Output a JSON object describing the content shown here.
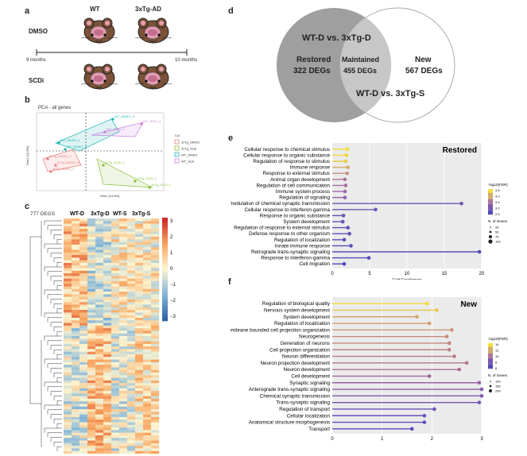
{
  "panels": {
    "a": "a",
    "b": "b",
    "c": "c",
    "d": "d",
    "e": "e",
    "f": "f"
  },
  "panel_a": {
    "col_wt": "WT",
    "col_ad": "3xTg-AD",
    "row_dmso": "DMSO",
    "row_scdi": "SCDi",
    "t_start": "9 months",
    "t_end": "10 months"
  },
  "panel_b": {
    "title": "PCA - all genes",
    "xlabel": "Dim1 (14.8%)",
    "ylabel": "Dim2 (10.6%)",
    "legend_title": "Col",
    "legend": [
      "3xTg_DMSO",
      "3xTg_Scdi",
      "WT_DMSO",
      "WT_Scdi"
    ],
    "legend_colors": [
      "#e87d7d",
      "#8fbf3f",
      "#21b5b5",
      "#c77ee0"
    ],
    "points": [
      {
        "label": "WT_DMSO_4",
        "group": 2
      },
      {
        "label": "WT_SCDi_4",
        "group": 3
      },
      {
        "label": "WT_DMSO_1",
        "group": 2
      },
      {
        "label": "WT_SCDi_2",
        "group": 3
      },
      {
        "label": "WT_DMSO_2",
        "group": 2
      },
      {
        "label": "3xTg_DMSO_2",
        "group": 0
      },
      {
        "label": "3xTg_DMSO_3",
        "group": 0
      },
      {
        "label": "3xTg_DMSO_1",
        "group": 0
      },
      {
        "label": "3xTg_SCDi_4",
        "group": 1
      },
      {
        "label": "3xTg_SCDi_2",
        "group": 1
      },
      {
        "label": "3xTg_SCDi_1",
        "group": 1
      }
    ]
  },
  "panel_c": {
    "degs": "777 DEGS",
    "cols": [
      "WT-D",
      "3xTg-D",
      "WT-S",
      "3xTg-S"
    ],
    "scale": [
      "3",
      "2",
      "1",
      "0",
      "−1",
      "−2",
      "−3"
    ]
  },
  "panel_d": {
    "left_title": "WT-D vs. 3xTg-D",
    "restored": "Restored",
    "restored_n": "322 DEGs",
    "maintained": "Maintained",
    "maintained_n": "455 DEGs",
    "new": "New",
    "new_n": "567 DEGs",
    "right_title": "WT-D vs. 3xTg-S"
  },
  "panel_e": {
    "chart_data": {
      "type": "lollipop",
      "title": "Restored",
      "xlabel": "Fold Enrichment",
      "xlim": [
        0,
        20
      ],
      "xticks": [
        "0",
        "5",
        "10",
        "15",
        "20"
      ],
      "categories": [
        "Cellular response to chemical stimulus",
        "Cellular response to organic substance",
        "Regulation of response to stimulus",
        "Immune response",
        "Response to external stimulus",
        "Animal organ development",
        "Regulation of cell communication",
        "Immune system process",
        "Regulation of signaling",
        "Presynaptic modulation of chemical synaptic transmission",
        "Cellular response to interferon-gamma",
        "Response to organic substance",
        "System development",
        "Regulation of response to external stimulus",
        "Defense response to other organism",
        "Regulation of localization",
        "Innate immune response",
        "Retrograde trans-synaptic signaling",
        "Response to interferon-gamma",
        "Cell migration"
      ],
      "values": [
        2.0,
        1.9,
        1.8,
        2.1,
        2.0,
        1.7,
        1.8,
        1.7,
        1.7,
        17.3,
        5.8,
        1.5,
        1.4,
        2.1,
        2.3,
        1.6,
        2.5,
        19.7,
        4.9,
        1.6
      ],
      "colors": [
        "#f2de38",
        "#eed83c",
        "#e6cf44",
        "#d6ac6c",
        "#c99186",
        "#b0749a",
        "#a66ea0",
        "#9c68a6",
        "#9263aa",
        "#6d55b2",
        "#6b55b3",
        "#6653b4",
        "#6352b5",
        "#6051b6",
        "#5d50b6",
        "#5a4fb7",
        "#574eb7",
        "#544db8",
        "#524cb8",
        "#4f4bb9"
      ],
      "legend_title": "-log10(FDR)",
      "legend_ticks": [
        "4.5",
        "4.0",
        "3.5",
        "3.0",
        "2.5"
      ],
      "size_title": "N. of Genes",
      "size_ticks": [
        "25",
        "50",
        "75",
        "100"
      ]
    }
  },
  "panel_f": {
    "chart_data": {
      "type": "lollipop",
      "title": "New",
      "xlabel": "Fold Enrichment",
      "xlim": [
        0,
        3
      ],
      "xticks": [
        "0",
        "1",
        "2",
        "3"
      ],
      "categories": [
        "Regulation of biological quality",
        "Nervous system development",
        "System development",
        "Regulation of localization",
        "Plasma membrane bounded cell projection organization",
        "Neurogenesis",
        "Generation of neurons",
        "Cell projection organization",
        "Neuron differentiation",
        "Neuron projection development",
        "Neuron development",
        "Cell development",
        "Synaptic signaling",
        "Anterograde trans-synaptic signaling",
        "Chemical synaptic transmission",
        "Trans-synaptic signaling",
        "Regulation of transport",
        "Cellular localization",
        "Anatomical structure morphogenesis",
        "Transport"
      ],
      "values": [
        1.9,
        2.1,
        1.7,
        1.95,
        2.4,
        2.3,
        2.35,
        2.35,
        2.45,
        2.7,
        2.55,
        1.95,
        2.95,
        3.0,
        3.0,
        2.95,
        2.05,
        1.85,
        1.85,
        1.6
      ],
      "colors": [
        "#f2de38",
        "#e8c64e",
        "#d7a468",
        "#d19a70",
        "#cc9476",
        "#c88d7c",
        "#c48780",
        "#bf8184",
        "#ba7b88",
        "#b3748e",
        "#ac6e94",
        "#a2689c",
        "#9763a4",
        "#8c5eab",
        "#8159b0",
        "#7755b4",
        "#6e52b7",
        "#6650ba",
        "#5e4ebc",
        "#574cbd"
      ],
      "legend_title": "-log10(FDR)",
      "legend_ticks": [
        "14",
        "12",
        "10",
        "8",
        "6"
      ],
      "size_title": "N. of Genes",
      "size_ticks": [
        "100",
        "150",
        "200"
      ]
    }
  }
}
